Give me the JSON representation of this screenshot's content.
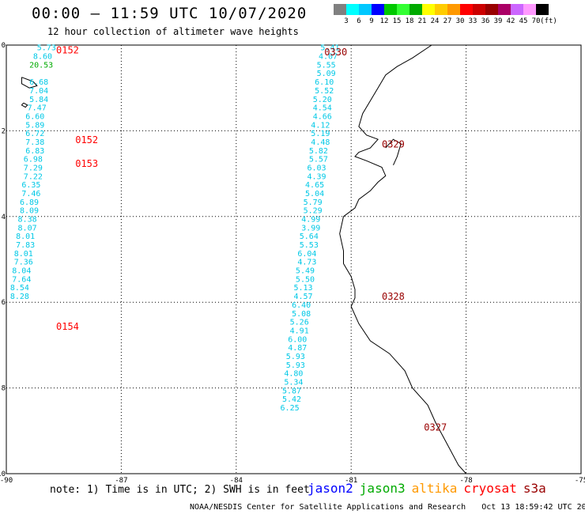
{
  "header": {
    "title": "00:00 – 11:59 UTC 10/07/2020",
    "subtitle": "12 hour collection of altimeter wave heights"
  },
  "colorbar": {
    "colors": [
      "#808080",
      "#00ffff",
      "#00c8ff",
      "#0000ff",
      "#00c800",
      "#33ff33",
      "#00aa00",
      "#ffff00",
      "#ffcc00",
      "#ff9900",
      "#ff0000",
      "#cc0000",
      "#990000",
      "#aa0066",
      "#cc66ff",
      "#ff99ff",
      "#000000"
    ],
    "ticks": [
      "3",
      "6",
      "9",
      "12",
      "15",
      "18",
      "21",
      "24",
      "27",
      "30",
      "33",
      "36",
      "39",
      "42",
      "45",
      "70",
      "(ft)"
    ]
  },
  "map": {
    "lon_range": [
      -90,
      -75
    ],
    "lat_range": [
      -10,
      0
    ],
    "x_ticks": [
      {
        "v": -90,
        "label": "-90"
      },
      {
        "v": -87,
        "label": "-87"
      },
      {
        "v": -84,
        "label": "-84"
      },
      {
        "v": -81,
        "label": "-81"
      },
      {
        "v": -78,
        "label": "-78"
      },
      {
        "v": -75,
        "label": "-75"
      }
    ],
    "y_ticks": [
      {
        "v": 0,
        "label": "0"
      },
      {
        "v": -2,
        "label": "-2"
      },
      {
        "v": -4,
        "label": "-4"
      },
      {
        "v": -6,
        "label": "-6"
      },
      {
        "v": -8,
        "label": "-8"
      },
      {
        "v": -10,
        "label": "-10"
      }
    ],
    "coastline": [
      [
        -78.9,
        0
      ],
      [
        -79.4,
        -0.3
      ],
      [
        -79.8,
        -0.5
      ],
      [
        -80.1,
        -0.7
      ],
      [
        -80.3,
        -1.0
      ],
      [
        -80.5,
        -1.3
      ],
      [
        -80.7,
        -1.6
      ],
      [
        -80.8,
        -1.9
      ],
      [
        -80.6,
        -2.1
      ],
      [
        -80.3,
        -2.2
      ],
      [
        -80.5,
        -2.4
      ],
      [
        -80.8,
        -2.5
      ],
      [
        -80.9,
        -2.6
      ],
      [
        -80.6,
        -2.7
      ],
      [
        -80.2,
        -2.85
      ],
      [
        -80.1,
        -3.05
      ],
      [
        -80.3,
        -3.2
      ],
      [
        -80.5,
        -3.4
      ],
      [
        -80.8,
        -3.6
      ],
      [
        -80.9,
        -3.8
      ],
      [
        -81.2,
        -4.0
      ],
      [
        -81.3,
        -4.4
      ],
      [
        -81.2,
        -4.8
      ],
      [
        -81.2,
        -5.1
      ],
      [
        -81.0,
        -5.4
      ],
      [
        -80.9,
        -5.7
      ],
      [
        -80.9,
        -5.9
      ],
      [
        -81.0,
        -6.1
      ],
      [
        -80.8,
        -6.5
      ],
      [
        -80.5,
        -6.9
      ],
      [
        -80.0,
        -7.2
      ],
      [
        -79.6,
        -7.6
      ],
      [
        -79.4,
        -8.0
      ],
      [
        -79.0,
        -8.4
      ],
      [
        -78.8,
        -8.8
      ],
      [
        -78.5,
        -9.3
      ],
      [
        -78.2,
        -9.8
      ],
      [
        -78.0,
        -10.0
      ]
    ],
    "islands": [
      [
        [
          -89.6,
          -0.75
        ],
        [
          -89.3,
          -0.85
        ],
        [
          -89.2,
          -0.95
        ],
        [
          -89.4,
          -1.0
        ],
        [
          -89.6,
          -0.9
        ],
        [
          -89.6,
          -0.75
        ]
      ],
      [
        [
          -89.55,
          -1.35
        ],
        [
          -89.45,
          -1.4
        ],
        [
          -89.5,
          -1.45
        ],
        [
          -89.6,
          -1.4
        ],
        [
          -89.55,
          -1.35
        ]
      ]
    ],
    "bay_river": [
      [
        -80.1,
        -2.4
      ],
      [
        -79.9,
        -2.2
      ],
      [
        -79.7,
        -2.3
      ],
      [
        -79.8,
        -2.6
      ],
      [
        -79.9,
        -2.8
      ]
    ]
  },
  "tracks": [
    {
      "satellite": "s3a",
      "time_labels": [
        {
          "text": "0152",
          "lon": -88.7,
          "lat": -0.1
        },
        {
          "text": "0152",
          "lon": -88.2,
          "lat": -2.2
        },
        {
          "text": "0153",
          "lon": -88.2,
          "lat": -2.75
        },
        {
          "text": "0154",
          "lon": -88.7,
          "lat": -6.55
        }
      ],
      "points": [
        {
          "lon": -89.2,
          "lat": -0.05,
          "v": "5.73"
        },
        {
          "lon": -89.3,
          "lat": -0.25,
          "v": "8.60"
        },
        {
          "lon": -89.4,
          "lat": -0.45,
          "v": "20.53"
        },
        {
          "lon": -89.4,
          "lat": -0.85,
          "v": "6.68"
        },
        {
          "lon": -89.4,
          "lat": -1.05,
          "v": "7.04"
        },
        {
          "lon": -89.4,
          "lat": -1.25,
          "v": "5.84"
        },
        {
          "lon": -89.45,
          "lat": -1.45,
          "v": "7.47"
        },
        {
          "lon": -89.5,
          "lat": -1.65,
          "v": "6.60"
        },
        {
          "lon": -89.5,
          "lat": -1.85,
          "v": "5.89"
        },
        {
          "lon": -89.5,
          "lat": -2.05,
          "v": "6.72"
        },
        {
          "lon": -89.5,
          "lat": -2.25,
          "v": "7.38"
        },
        {
          "lon": -89.5,
          "lat": -2.45,
          "v": "6.83"
        },
        {
          "lon": -89.55,
          "lat": -2.65,
          "v": "6.98"
        },
        {
          "lon": -89.55,
          "lat": -2.85,
          "v": "7.29"
        },
        {
          "lon": -89.55,
          "lat": -3.05,
          "v": "7.22"
        },
        {
          "lon": -89.6,
          "lat": -3.25,
          "v": "6.35"
        },
        {
          "lon": -89.6,
          "lat": -3.45,
          "v": "7.46"
        },
        {
          "lon": -89.65,
          "lat": -3.65,
          "v": "6.89"
        },
        {
          "lon": -89.65,
          "lat": -3.85,
          "v": "8.09"
        },
        {
          "lon": -89.7,
          "lat": -4.05,
          "v": "8.38"
        },
        {
          "lon": -89.7,
          "lat": -4.25,
          "v": "8.07"
        },
        {
          "lon": -89.75,
          "lat": -4.45,
          "v": "8.01"
        },
        {
          "lon": -89.75,
          "lat": -4.65,
          "v": "7.83"
        },
        {
          "lon": -89.8,
          "lat": -4.85,
          "v": "8.01"
        },
        {
          "lon": -89.8,
          "lat": -5.05,
          "v": "7.36"
        },
        {
          "lon": -89.85,
          "lat": -5.25,
          "v": "8.04"
        },
        {
          "lon": -89.85,
          "lat": -5.45,
          "v": "7.64"
        },
        {
          "lon": -89.9,
          "lat": -5.65,
          "v": "8.54"
        },
        {
          "lon": -89.9,
          "lat": -5.85,
          "v": "8.28"
        }
      ]
    },
    {
      "satellite": "s3a",
      "time_labels": [
        {
          "text": "0330",
          "lon": -81.7,
          "lat": -0.15
        },
        {
          "text": "0329",
          "lon": -80.2,
          "lat": -2.3
        },
        {
          "text": "0328",
          "lon": -80.2,
          "lat": -5.85
        },
        {
          "text": "0327",
          "lon": -79.1,
          "lat": -8.9
        }
      ],
      "points": [
        {
          "lon": -81.8,
          "lat": -0.05,
          "v": "5.41"
        },
        {
          "lon": -81.85,
          "lat": -0.25,
          "v": "4.07"
        },
        {
          "lon": -81.9,
          "lat": -0.45,
          "v": "5.55"
        },
        {
          "lon": -81.9,
          "lat": -0.65,
          "v": "5.09"
        },
        {
          "lon": -81.95,
          "lat": -0.85,
          "v": "6.10"
        },
        {
          "lon": -81.95,
          "lat": -1.05,
          "v": "5.52"
        },
        {
          "lon": -82.0,
          "lat": -1.25,
          "v": "5.20"
        },
        {
          "lon": -82.0,
          "lat": -1.45,
          "v": "4.54"
        },
        {
          "lon": -82.0,
          "lat": -1.65,
          "v": "4.66"
        },
        {
          "lon": -82.05,
          "lat": -1.85,
          "v": "4.12"
        },
        {
          "lon": -82.05,
          "lat": -2.05,
          "v": "5.19"
        },
        {
          "lon": -82.05,
          "lat": -2.25,
          "v": "4.48"
        },
        {
          "lon": -82.1,
          "lat": -2.45,
          "v": "5.82"
        },
        {
          "lon": -82.1,
          "lat": -2.65,
          "v": "5.57"
        },
        {
          "lon": -82.15,
          "lat": -2.85,
          "v": "6.03"
        },
        {
          "lon": -82.15,
          "lat": -3.05,
          "v": "4.39"
        },
        {
          "lon": -82.2,
          "lat": -3.25,
          "v": "4.65"
        },
        {
          "lon": -82.2,
          "lat": -3.45,
          "v": "5.04"
        },
        {
          "lon": -82.25,
          "lat": -3.65,
          "v": "5.79"
        },
        {
          "lon": -82.25,
          "lat": -3.85,
          "v": "5.29"
        },
        {
          "lon": -82.3,
          "lat": -4.05,
          "v": "4.99"
        },
        {
          "lon": -82.3,
          "lat": -4.25,
          "v": "3.99"
        },
        {
          "lon": -82.35,
          "lat": -4.45,
          "v": "5.64"
        },
        {
          "lon": -82.35,
          "lat": -4.65,
          "v": "5.53"
        },
        {
          "lon": -82.4,
          "lat": -4.85,
          "v": "6.04"
        },
        {
          "lon": -82.4,
          "lat": -5.05,
          "v": "4.73"
        },
        {
          "lon": -82.45,
          "lat": -5.25,
          "v": "5.49"
        },
        {
          "lon": -82.45,
          "lat": -5.45,
          "v": "5.50"
        },
        {
          "lon": -82.5,
          "lat": -5.65,
          "v": "5.13"
        },
        {
          "lon": -82.5,
          "lat": -5.85,
          "v": "4.57"
        },
        {
          "lon": -82.55,
          "lat": -6.05,
          "v": "6.40"
        },
        {
          "lon": -82.55,
          "lat": -6.25,
          "v": "5.08"
        },
        {
          "lon": -82.6,
          "lat": -6.45,
          "v": "5.26"
        },
        {
          "lon": -82.6,
          "lat": -6.65,
          "v": "4.91"
        },
        {
          "lon": -82.65,
          "lat": -6.85,
          "v": "6.00"
        },
        {
          "lon": -82.65,
          "lat": -7.05,
          "v": "4.87"
        },
        {
          "lon": -82.7,
          "lat": -7.25,
          "v": "5.93"
        },
        {
          "lon": -82.7,
          "lat": -7.45,
          "v": "5.93"
        },
        {
          "lon": -82.75,
          "lat": -7.65,
          "v": "4.80"
        },
        {
          "lon": -82.75,
          "lat": -7.85,
          "v": "5.34"
        },
        {
          "lon": -82.8,
          "lat": -8.05,
          "v": "5.87"
        },
        {
          "lon": -82.8,
          "lat": -8.25,
          "v": "5.42"
        },
        {
          "lon": -82.85,
          "lat": -8.45,
          "v": "6.25"
        }
      ]
    }
  ],
  "note": "note: 1) Time is in UTC; 2) SWH is in feet",
  "legend": [
    {
      "label": "jason2",
      "color": "#0000ff"
    },
    {
      "label": "jason3",
      "color": "#00aa00"
    },
    {
      "label": "altika",
      "color": "#ff9900"
    },
    {
      "label": "cryosat",
      "color": "#ff0000"
    },
    {
      "label": "s3a",
      "color": "#990000"
    }
  ],
  "footer": {
    "credit": "NOAA/NESDIS Center for Satellite Applications and Research",
    "timestamp": "Oct 13 18:59:42 UTC 2020"
  }
}
